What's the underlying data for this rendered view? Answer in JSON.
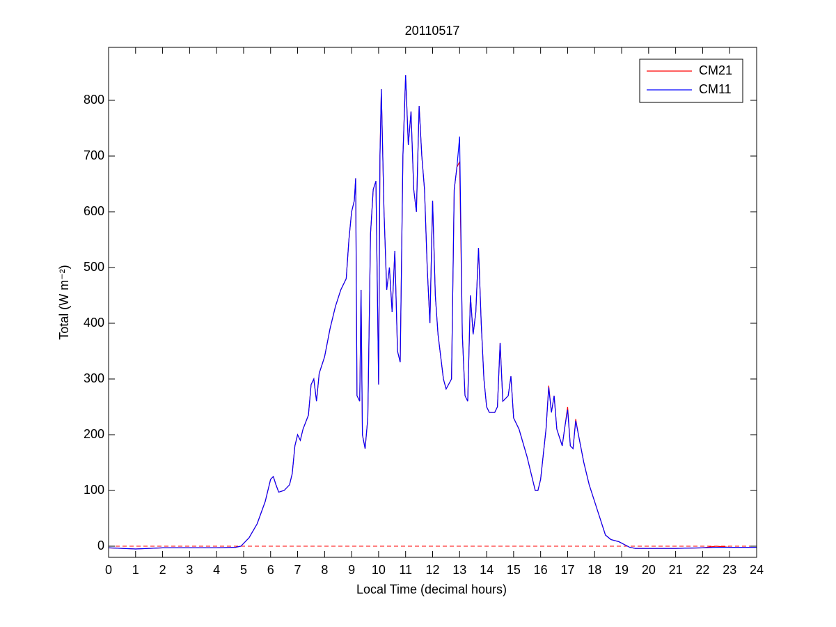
{
  "chart_data": {
    "type": "line",
    "title": "20110517",
    "x_label": "Local Time (decimal hours)",
    "y_label": "Total (W m⁻²)",
    "xlim": [
      0,
      24
    ],
    "ylim": [
      -20,
      895
    ],
    "xticks": [
      0,
      1,
      2,
      3,
      4,
      5,
      6,
      7,
      8,
      9,
      10,
      11,
      12,
      13,
      14,
      15,
      16,
      17,
      18,
      19,
      20,
      21,
      22,
      23,
      24
    ],
    "yticks": [
      0,
      100,
      200,
      300,
      400,
      500,
      600,
      700,
      800
    ],
    "grid": false,
    "legend": "upper right",
    "reference_line": {
      "y": 0,
      "color": "#ff0000"
    },
    "x": [
      0,
      0.5,
      1,
      1.5,
      2,
      3,
      4,
      4.7,
      4.9,
      5.0,
      5.2,
      5.5,
      5.8,
      6.0,
      6.1,
      6.2,
      6.3,
      6.5,
      6.7,
      6.8,
      6.9,
      7.0,
      7.1,
      7.2,
      7.4,
      7.5,
      7.6,
      7.7,
      7.8,
      8.0,
      8.2,
      8.4,
      8.6,
      8.8,
      8.9,
      9.0,
      9.1,
      9.15,
      9.2,
      9.3,
      9.35,
      9.4,
      9.5,
      9.6,
      9.7,
      9.8,
      9.9,
      10.0,
      10.05,
      10.1,
      10.2,
      10.3,
      10.4,
      10.5,
      10.6,
      10.7,
      10.8,
      10.9,
      11.0,
      11.1,
      11.2,
      11.3,
      11.4,
      11.5,
      11.6,
      11.7,
      11.8,
      11.9,
      12.0,
      12.1,
      12.2,
      12.4,
      12.5,
      12.7,
      12.8,
      12.9,
      13.0,
      13.1,
      13.2,
      13.3,
      13.4,
      13.5,
      13.6,
      13.7,
      13.8,
      13.9,
      14.0,
      14.1,
      14.3,
      14.4,
      14.5,
      14.6,
      14.8,
      14.9,
      15.0,
      15.2,
      15.5,
      15.8,
      15.9,
      16.0,
      16.2,
      16.3,
      16.4,
      16.5,
      16.6,
      16.8,
      16.9,
      17.0,
      17.1,
      17.2,
      17.3,
      17.4,
      17.6,
      17.8,
      18.0,
      18.2,
      18.4,
      18.6,
      18.9,
      19.1,
      19.3,
      19.5,
      20,
      21,
      22,
      22.5,
      23,
      24
    ],
    "series": [
      {
        "name": "CM21",
        "color": "#ff0000",
        "values": [
          -3,
          -4,
          -5,
          -4,
          -3,
          -3,
          -3,
          -2,
          0,
          5,
          15,
          40,
          80,
          120,
          125,
          110,
          97,
          100,
          110,
          130,
          180,
          200,
          190,
          210,
          235,
          290,
          300,
          260,
          310,
          340,
          390,
          430,
          460,
          480,
          550,
          600,
          620,
          660,
          270,
          260,
          460,
          200,
          175,
          230,
          560,
          640,
          655,
          290,
          700,
          820,
          600,
          460,
          500,
          420,
          530,
          350,
          330,
          700,
          845,
          720,
          780,
          640,
          600,
          790,
          700,
          640,
          500,
          400,
          620,
          450,
          380,
          300,
          282,
          300,
          640,
          680,
          690,
          380,
          270,
          260,
          450,
          380,
          420,
          535,
          400,
          300,
          250,
          240,
          240,
          250,
          365,
          260,
          270,
          305,
          230,
          210,
          160,
          100,
          100,
          120,
          210,
          288,
          240,
          270,
          210,
          180,
          215,
          250,
          180,
          175,
          228,
          200,
          150,
          110,
          80,
          50,
          20,
          12,
          8,
          3,
          -2,
          -4,
          -4,
          -4,
          -3,
          0,
          -2,
          -2
        ]
      },
      {
        "name": "CM11",
        "color": "#0000ff",
        "values": [
          -3,
          -4,
          -5,
          -4,
          -3,
          -3,
          -3,
          -2,
          0,
          5,
          15,
          40,
          80,
          120,
          125,
          110,
          97,
          100,
          110,
          130,
          180,
          200,
          190,
          210,
          235,
          290,
          300,
          260,
          310,
          340,
          390,
          430,
          460,
          480,
          550,
          600,
          620,
          660,
          270,
          260,
          460,
          200,
          175,
          230,
          560,
          640,
          655,
          290,
          700,
          820,
          600,
          460,
          500,
          420,
          530,
          350,
          330,
          700,
          845,
          720,
          780,
          640,
          600,
          790,
          700,
          640,
          500,
          400,
          620,
          450,
          380,
          300,
          282,
          300,
          640,
          680,
          735,
          380,
          270,
          260,
          450,
          380,
          420,
          535,
          400,
          300,
          250,
          240,
          240,
          250,
          365,
          260,
          270,
          305,
          230,
          210,
          160,
          100,
          100,
          120,
          210,
          285,
          240,
          270,
          210,
          180,
          215,
          245,
          180,
          175,
          225,
          200,
          150,
          110,
          80,
          50,
          20,
          12,
          8,
          3,
          -2,
          -4,
          -4,
          -4,
          -3,
          -2,
          -2,
          -2
        ]
      }
    ]
  }
}
